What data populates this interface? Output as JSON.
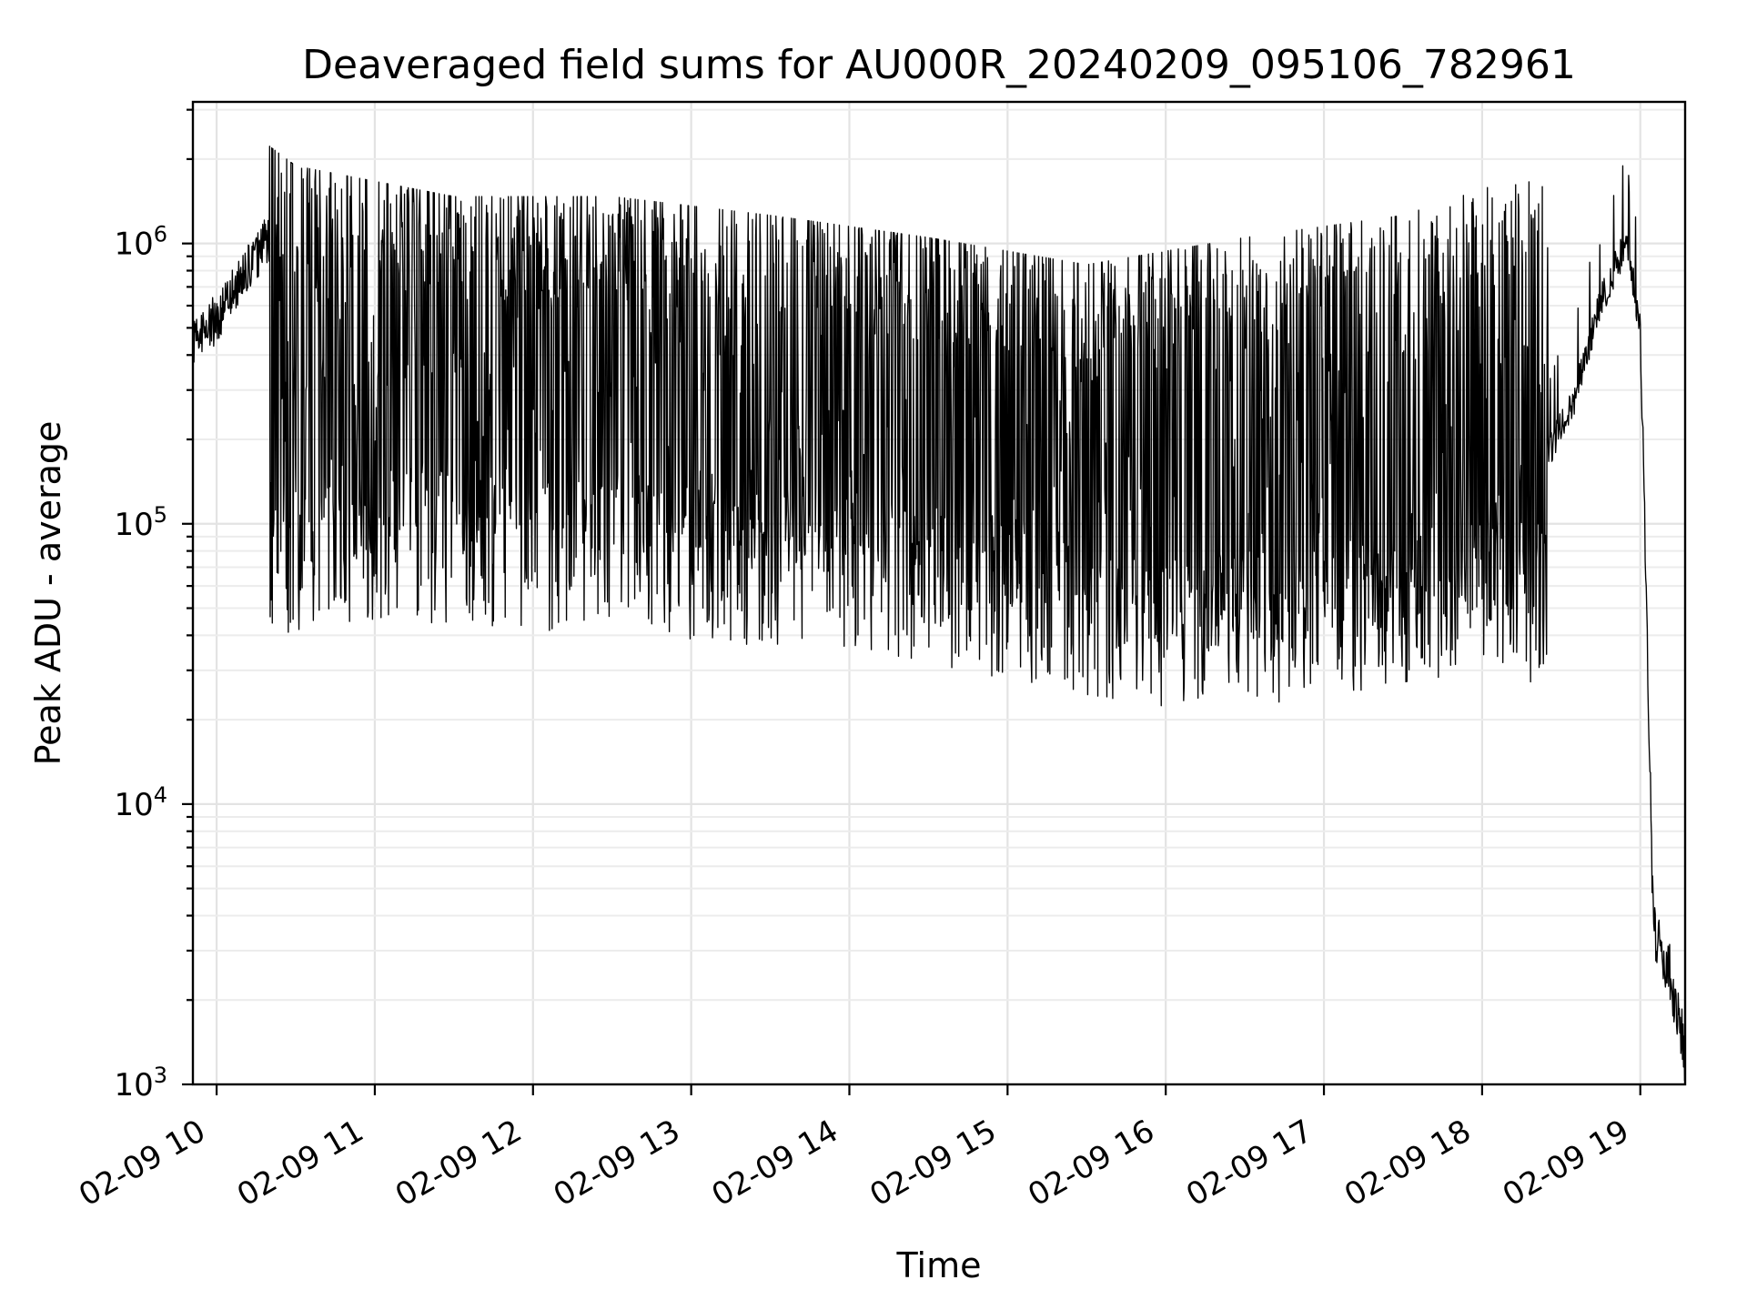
{
  "chart_data": {
    "type": "line",
    "title": "Deaveraged field sums for AU000R_20240209_095106_782961",
    "xlabel": "Time",
    "ylabel": "Peak ADU - average",
    "xscale": "time",
    "yscale": "log",
    "ylim": [
      1000,
      3200000
    ],
    "grid": "both",
    "legend": "none",
    "xlim": [
      "2024-02-09 09:51",
      "2024-02-09 19:17"
    ],
    "x_tick_labels": [
      "02-09 10",
      "02-09 11",
      "02-09 12",
      "02-09 13",
      "02-09 14",
      "02-09 15",
      "02-09 16",
      "02-09 17",
      "02-09 18",
      "02-09 19"
    ],
    "y_tick_labels": [
      {
        "base": "10",
        "exp": "3",
        "value": 1000
      },
      {
        "base": "10",
        "exp": "4",
        "value": 10000
      },
      {
        "base": "10",
        "exp": "5",
        "value": 100000
      },
      {
        "base": "10",
        "exp": "6",
        "value": 1000000
      }
    ],
    "series": [
      {
        "color": "#000000",
        "points": [
          [
            "2024-02-09 09:51",
            450000
          ],
          [
            "2024-02-09 10:00",
            540000
          ],
          [
            "2024-02-09 10:10",
            760000
          ],
          [
            "2024-02-09 10:20",
            1050000
          ],
          [
            "2024-02-09 10:30",
            1120000
          ],
          [
            "2024-02-09 10:40",
            980000
          ],
          [
            "2024-02-09 10:50",
            860000
          ],
          [
            "2024-02-09 11:00",
            780000
          ],
          [
            "2024-02-09 11:30",
            680000
          ],
          [
            "2024-02-09 12:00",
            600000
          ],
          [
            "2024-02-09 12:30",
            560000
          ],
          [
            "2024-02-09 13:00",
            520000
          ],
          [
            "2024-02-09 13:30",
            500000
          ],
          [
            "2024-02-09 14:00",
            470000
          ],
          [
            "2024-02-09 14:30",
            430000
          ],
          [
            "2024-02-09 15:00",
            380000
          ],
          [
            "2024-02-09 15:30",
            330000
          ],
          [
            "2024-02-09 16:00",
            290000
          ],
          [
            "2024-02-09 16:30",
            260000
          ],
          [
            "2024-02-09 17:00",
            250000
          ],
          [
            "2024-02-09 17:30",
            260000
          ],
          [
            "2024-02-09 18:00",
            300000
          ],
          [
            "2024-02-09 18:20",
            140000
          ],
          [
            "2024-02-09 18:35",
            280000
          ],
          [
            "2024-02-09 18:45",
            620000
          ],
          [
            "2024-02-09 18:55",
            1020000
          ],
          [
            "2024-02-09 19:00",
            480000
          ],
          [
            "2024-02-09 19:05",
            3500
          ],
          [
            "2024-02-09 19:10",
            2800
          ],
          [
            "2024-02-09 19:17",
            1300
          ]
        ],
        "spike_min_values": [
          [
            "2024-02-09 10:30",
            40000
          ],
          [
            "2024-02-09 11:00",
            45000
          ],
          [
            "2024-02-09 12:00",
            42000
          ],
          [
            "2024-02-09 13:00",
            38000
          ],
          [
            "2024-02-09 14:00",
            35000
          ],
          [
            "2024-02-09 15:00",
            28000
          ],
          [
            "2024-02-09 16:00",
            21000
          ],
          [
            "2024-02-09 17:00",
            24000
          ],
          [
            "2024-02-09 18:00",
            30000
          ]
        ],
        "spike_max_values": [
          [
            "2024-02-09 10:15",
            2300000
          ],
          [
            "2024-02-09 10:30",
            1800000
          ],
          [
            "2024-02-09 11:30",
            1400000
          ],
          [
            "2024-02-09 12:30",
            1400000
          ],
          [
            "2024-02-09 13:30",
            1200000
          ],
          [
            "2024-02-09 14:30",
            1000000
          ],
          [
            "2024-02-09 15:30",
            800000
          ],
          [
            "2024-02-09 16:30",
            1000000
          ],
          [
            "2024-02-09 17:30",
            1200000
          ],
          [
            "2024-02-09 18:55",
            2200000
          ]
        ]
      }
    ]
  }
}
